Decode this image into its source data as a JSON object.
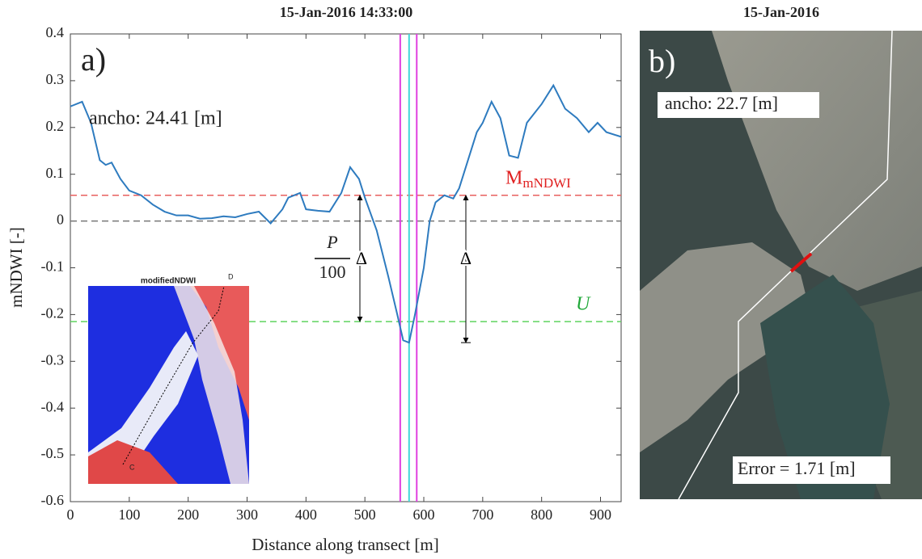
{
  "chart_data": {
    "type": "line",
    "title": "15-Jan-2016 14:33:00",
    "x_label": "Distance along transect [m]",
    "y_label": "mNDWI [-]",
    "xlim": [
      0,
      935
    ],
    "ylim": [
      -0.6,
      0.4
    ],
    "xticks": [
      0,
      100,
      200,
      300,
      400,
      500,
      600,
      700,
      800,
      900
    ],
    "yticks": [
      -0.6,
      -0.5,
      -0.4,
      -0.3,
      -0.2,
      -0.1,
      0,
      0.1,
      0.2,
      0.3,
      0.4
    ],
    "color": "#2e7bbf",
    "x": [
      0,
      20,
      35,
      50,
      60,
      70,
      85,
      100,
      120,
      140,
      160,
      180,
      200,
      220,
      240,
      260,
      280,
      300,
      320,
      340,
      360,
      370,
      390,
      400,
      420,
      440,
      460,
      475,
      490,
      500,
      520,
      540,
      555,
      565,
      575,
      585,
      600,
      610,
      620,
      635,
      650,
      660,
      675,
      690,
      700,
      715,
      730,
      745,
      760,
      775,
      800,
      820,
      840,
      860,
      880,
      895,
      910,
      935
    ],
    "values": [
      0.245,
      0.255,
      0.21,
      0.13,
      0.12,
      0.125,
      0.09,
      0.065,
      0.055,
      0.035,
      0.02,
      0.012,
      0.012,
      0.005,
      0.006,
      0.01,
      0.008,
      0.015,
      0.02,
      -0.005,
      0.025,
      0.05,
      0.06,
      0.025,
      0.022,
      0.02,
      0.06,
      0.115,
      0.09,
      0.05,
      -0.02,
      -0.12,
      -0.2,
      -0.255,
      -0.26,
      -0.2,
      -0.1,
      0.0,
      0.04,
      0.055,
      0.048,
      0.07,
      0.13,
      0.19,
      0.21,
      0.255,
      0.22,
      0.14,
      0.135,
      0.21,
      0.25,
      0.29,
      0.24,
      0.22,
      0.19,
      0.21,
      0.19,
      0.18
    ],
    "hlines": [
      {
        "value": 0.055,
        "color": "#e8605f"
      },
      {
        "value": 0,
        "color": "#777777"
      },
      {
        "value": -0.215,
        "color": "#5fd45f"
      }
    ],
    "vlines": [
      {
        "value": 560,
        "color": "#e040e0"
      },
      {
        "value": 575,
        "color": "#40d8d8"
      },
      {
        "value": 588,
        "color": "#e040e0"
      }
    ],
    "annotations": {
      "panel": "a)",
      "width": "ancho: 24.41 [m]",
      "m_label": "M",
      "m_sub": "mNDWI",
      "u_label": "U",
      "p_num": "P",
      "p_den": "100",
      "delta": "Δ"
    }
  },
  "inset": {
    "title": "modifiedNDWI",
    "top_label": "D",
    "bottom_label": "C"
  },
  "panel_b": {
    "title": "15-Jan-2016",
    "panel": "b)",
    "width": "ancho: 22.7 [m]",
    "error": "Error = 1.71 [m]"
  }
}
